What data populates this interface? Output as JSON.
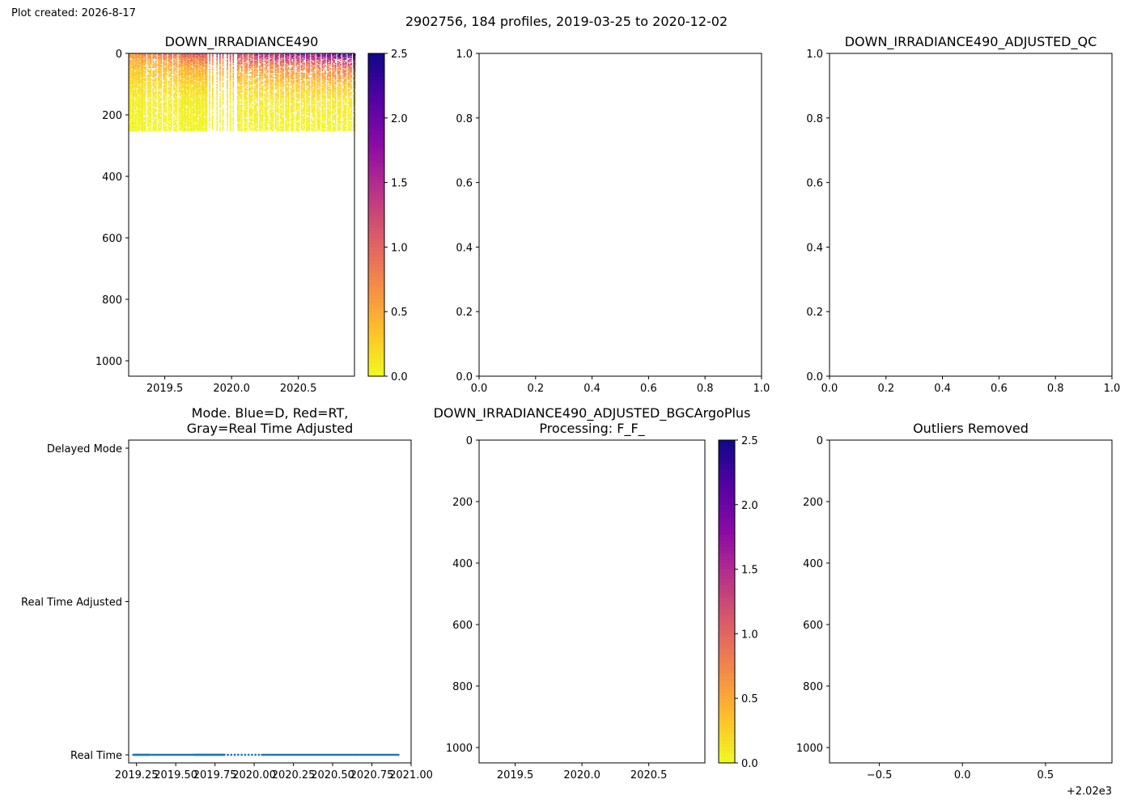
{
  "header": {
    "created": "Plot created: 2026-8-17",
    "suptitle": "2902756, 184 profiles, 2019-03-25 to 2020-12-02"
  },
  "chart_data": [
    {
      "id": "p1",
      "type": "heatmap",
      "title": "DOWN_IRRADIANCE490",
      "xlim": [
        2019.23,
        2020.92
      ],
      "ylim": [
        1050,
        0
      ],
      "x_ticks": [
        2019.5,
        2020.0,
        2020.5
      ],
      "x_tick_labels": [
        "2019.5",
        "2020.0",
        "2020.5"
      ],
      "y_ticks": [
        0,
        200,
        400,
        600,
        800,
        1000
      ],
      "y_tick_labels": [
        "0",
        "200",
        "400",
        "600",
        "800",
        "1000"
      ],
      "colormap": "plasma_r",
      "vmin": 0,
      "vmax": 2.5,
      "colorbar_ticks": [
        0.0,
        0.5,
        1.0,
        1.5,
        2.0,
        2.5
      ],
      "colorbar_tick_labels": [
        "0.0",
        "0.5",
        "1.0",
        "1.5",
        "2.0",
        "2.5"
      ],
      "profile_max_depth": 250,
      "profile_segments": [
        {
          "start": 2019.23,
          "end": 2019.33,
          "step": 0.0055,
          "alt_step": 0.011
        },
        {
          "start": 2019.33,
          "end": 2019.62,
          "step": 0.011,
          "alt_step": 0.017
        },
        {
          "start": 2019.62,
          "end": 2019.81,
          "step": 0.0055,
          "alt_step": 0.011
        },
        {
          "start": 2019.81,
          "end": 2020.05,
          "step": 0.022,
          "alt_step": 0.033
        },
        {
          "start": 2020.05,
          "end": 2020.92,
          "step": 0.011,
          "alt_step": 0.017
        }
      ],
      "value_profile": [
        {
          "depth": 0,
          "early": 0.6,
          "late": 2.1
        },
        {
          "depth": 20,
          "early": 0.45,
          "late": 1.4
        },
        {
          "depth": 50,
          "early": 0.3,
          "late": 0.8
        },
        {
          "depth": 100,
          "early": 0.15,
          "late": 0.35
        },
        {
          "depth": 150,
          "early": 0.07,
          "late": 0.12
        },
        {
          "depth": 250,
          "early": 0.02,
          "late": 0.03
        }
      ]
    },
    {
      "id": "p2",
      "type": "scatter",
      "title": "",
      "xlim": [
        0,
        1
      ],
      "ylim": [
        0,
        1
      ],
      "x_ticks": [
        0,
        0.2,
        0.4,
        0.6,
        0.8,
        1.0
      ],
      "x_tick_labels": [
        "0.0",
        "0.2",
        "0.4",
        "0.6",
        "0.8",
        "1.0"
      ],
      "y_ticks": [
        0,
        0.2,
        0.4,
        0.6,
        0.8,
        1.0
      ],
      "y_tick_labels": [
        "0.0",
        "0.2",
        "0.4",
        "0.6",
        "0.8",
        "1.0"
      ],
      "series": []
    },
    {
      "id": "p3",
      "type": "scatter",
      "title": "DOWN_IRRADIANCE490_ADJUSTED_QC",
      "xlim": [
        0,
        1
      ],
      "ylim": [
        0,
        1
      ],
      "x_ticks": [
        0,
        0.2,
        0.4,
        0.6,
        0.8,
        1.0
      ],
      "x_tick_labels": [
        "0.0",
        "0.2",
        "0.4",
        "0.6",
        "0.8",
        "1.0"
      ],
      "y_ticks": [
        0,
        0.2,
        0.4,
        0.6,
        0.8,
        1.0
      ],
      "y_tick_labels": [
        "0.0",
        "0.2",
        "0.4",
        "0.6",
        "0.8",
        "1.0"
      ],
      "series": []
    },
    {
      "id": "p4",
      "type": "scatter",
      "title": "Mode. Blue=D, Red=RT,\nGray=Real Time Adjusted",
      "xlim": [
        2019.2,
        2021.0
      ],
      "ylim": [
        0,
        2
      ],
      "x_ticks": [
        2019.25,
        2019.5,
        2019.75,
        2020.0,
        2020.25,
        2020.5,
        2020.75,
        2021.0
      ],
      "x_tick_labels": [
        "2019.25",
        "2019.50",
        "2019.75",
        "2020.00",
        "2020.25",
        "2020.50",
        "2020.75",
        "2021.00"
      ],
      "y_ticks": [
        0,
        1,
        2
      ],
      "y_tick_labels": [
        "Real Time",
        "Real Time Adjusted",
        "Delayed Mode"
      ],
      "point_color": "#1f77b4",
      "point_y": 0,
      "point_segments": [
        {
          "start": 2019.23,
          "end": 2019.33,
          "step": 0.0055
        },
        {
          "start": 2019.33,
          "end": 2019.62,
          "step": 0.011
        },
        {
          "start": 2019.62,
          "end": 2019.81,
          "step": 0.0055
        },
        {
          "start": 2019.81,
          "end": 2020.05,
          "step": 0.022
        },
        {
          "start": 2020.05,
          "end": 2020.92,
          "step": 0.011
        }
      ]
    },
    {
      "id": "p5",
      "type": "heatmap",
      "title": "DOWN_IRRADIANCE490_ADJUSTED_BGCArgoPlus\nProcessing: F_F_",
      "xlim": [
        2019.23,
        2020.92
      ],
      "ylim": [
        1050,
        0
      ],
      "x_ticks": [
        2019.5,
        2020.0,
        2020.5
      ],
      "x_tick_labels": [
        "2019.5",
        "2020.0",
        "2020.5"
      ],
      "y_ticks": [
        0,
        200,
        400,
        600,
        800,
        1000
      ],
      "y_tick_labels": [
        "0",
        "200",
        "400",
        "600",
        "800",
        "1000"
      ],
      "colormap": "plasma_r",
      "vmin": 0,
      "vmax": 2.5,
      "colorbar_ticks": [
        0.0,
        0.5,
        1.0,
        1.5,
        2.0,
        2.5
      ],
      "colorbar_tick_labels": [
        "0.0",
        "0.5",
        "1.0",
        "1.5",
        "2.0",
        "2.5"
      ],
      "series": []
    },
    {
      "id": "p6",
      "type": "scatter",
      "title": "Outliers Removed",
      "xlim": [
        -0.8,
        0.9
      ],
      "ylim": [
        1050,
        0
      ],
      "x_ticks": [
        -0.5,
        0.0,
        0.5
      ],
      "x_tick_labels": [
        "−0.5",
        "0.0",
        "0.5"
      ],
      "y_ticks": [
        0,
        200,
        400,
        600,
        800,
        1000
      ],
      "y_tick_labels": [
        "0",
        "200",
        "400",
        "600",
        "800",
        "1000"
      ],
      "offset_label": "+2.02e3",
      "series": []
    }
  ]
}
